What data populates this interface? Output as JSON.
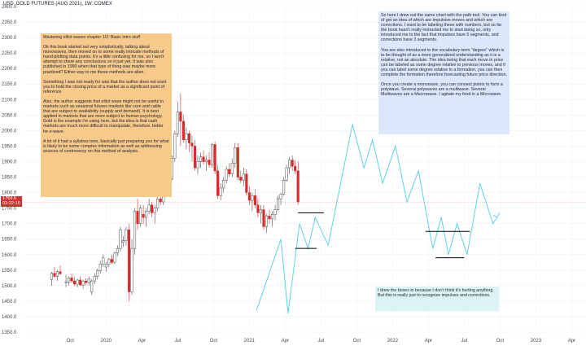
{
  "header": {
    "currency": "USD",
    "title": "GOLD FUTURES (AUG 2021), 1W, COMEX"
  },
  "price_label": {
    "price": "1769.6",
    "countdown": "03:22:15"
  },
  "colors": {
    "up_candle": "#ffffff",
    "down_candle": "#d62b2b",
    "outline": "#4a4a4a",
    "projection": "#61d2e6",
    "support_lines": "#000000",
    "price_line": "#f08a8a"
  },
  "notes": {
    "orange": {
      "title": "Mastering elliot waves chapter 1/2: Basic intro stuff",
      "p1": "Ok this book started out very simplistically, talking about monowaves, then moved on to some really intricate methods of hand-plotting data points. It's a little confusing for me, so I won't attempt to share any conclusions on it just yet. It was also published in 1990 when that type of thing was maybe more practiced? Either way to me those methods are alien.",
      "p2": "Something I was not ready for was that the author does not want you to hold the closing price of a market as a significant point of reference.",
      "p3": "Also, the author suggests that elliot wave might not be useful in markets such as seasonal futures markets like corn and cattle that are subject to availability (supply and demand). It is best applied in markets that are more subject to human psychology. Gold is the example I'm using here, but the idea is that cash markets are much more difficult to manipulate, therefore, better for e-wave.",
      "p4": "A lot of it had a syllabus tone, basically just preparing you for what is likely to be some complex information as well as addressing sources of controversy on this method of analysis."
    },
    "blue": {
      "p1": "So here I drew out the same chart with the path tool. You can kind of get an idea of which are impulsive moves and which are corrections. I want to be labeling these with numbers, but so far the book hasn't really instructed me to start doing so, only introduced me to the fact that impulses have 5 segments, and corrections have 3 segments.",
      "p2": "You are also introduced to the vocabulary term \"degree\" which is to be thought of as a more generalized understanding as it is a relative, not an absolute. The idea being that each move in price can be labeled as some degree relative to previous moves, and if you can label some degree relative to a formation, you can then complete the formation therefore forecasting future price direction.",
      "p3": "Once you create a monowave, you can connect points to form a polywave. Several polywaves are a multiwave. Several Multiwaves are a Macrowave. I agitate my food in a Microwave."
    },
    "cyan": {
      "p1": "I drew the boxes in because I don't think it's hurting anything. But this is really just to recognize impulses and corrections."
    }
  },
  "chart_data": {
    "type": "candlestick",
    "title": "GOLD FUTURES (AUG 2021), 1W, COMEX",
    "ylim": [
      1350,
      2400
    ],
    "y_ticks": [
      2400,
      2350,
      2300,
      2250,
      2200,
      2150,
      2100,
      2050,
      2000,
      1950,
      1900,
      1850,
      1800,
      1750,
      1700,
      1650,
      1600,
      1550,
      1500,
      1450,
      1400,
      1350
    ],
    "y_tick_labels": [
      "2400.0",
      "2350.0",
      "2300.0",
      "2250.0",
      "2200.0",
      "2150.0",
      "2100.0",
      "2050.0",
      "2000.0",
      "1950.0",
      "1900.0",
      "1850.0",
      "1800.0",
      "1750.0",
      "1700.0",
      "1650.0",
      "1600.0",
      "1550.0",
      "1500.0",
      "1450.0",
      "1400.0",
      "1350.0"
    ],
    "x_tick_labels": [
      {
        "t": 2019.75,
        "label": "Oct"
      },
      {
        "t": 2020.0,
        "label": "2020"
      },
      {
        "t": 2020.25,
        "label": "Apr"
      },
      {
        "t": 2020.5,
        "label": "Jul"
      },
      {
        "t": 2020.75,
        "label": "Oct"
      },
      {
        "t": 2021.0,
        "label": "2021"
      },
      {
        "t": 2021.25,
        "label": "Apr"
      },
      {
        "t": 2021.5,
        "label": "Jul"
      },
      {
        "t": 2021.75,
        "label": "Oct"
      },
      {
        "t": 2022.0,
        "label": "2022"
      },
      {
        "t": 2022.25,
        "label": "Apr"
      },
      {
        "t": 2022.5,
        "label": "Jul"
      },
      {
        "t": 2022.75,
        "label": "Oct"
      },
      {
        "t": 2023.0,
        "label": "2023"
      },
      {
        "t": 2023.25,
        "label": "Apr"
      }
    ],
    "candles": [
      {
        "t": 2019.62,
        "o": 1520,
        "h": 1545,
        "l": 1500,
        "c": 1540
      },
      {
        "t": 2019.64,
        "o": 1540,
        "h": 1560,
        "l": 1525,
        "c": 1530
      },
      {
        "t": 2019.66,
        "o": 1530,
        "h": 1550,
        "l": 1515,
        "c": 1545
      },
      {
        "t": 2019.68,
        "o": 1545,
        "h": 1565,
        "l": 1535,
        "c": 1538
      },
      {
        "t": 2019.72,
        "o": 1510,
        "h": 1535,
        "l": 1495,
        "c": 1512
      },
      {
        "t": 2019.74,
        "o": 1512,
        "h": 1530,
        "l": 1500,
        "c": 1525
      },
      {
        "t": 2019.76,
        "o": 1525,
        "h": 1540,
        "l": 1510,
        "c": 1515
      },
      {
        "t": 2019.78,
        "o": 1515,
        "h": 1528,
        "l": 1498,
        "c": 1505
      },
      {
        "t": 2019.8,
        "o": 1505,
        "h": 1522,
        "l": 1495,
        "c": 1518
      },
      {
        "t": 2019.82,
        "o": 1518,
        "h": 1530,
        "l": 1500,
        "c": 1502
      },
      {
        "t": 2019.84,
        "o": 1502,
        "h": 1520,
        "l": 1490,
        "c": 1515
      },
      {
        "t": 2019.86,
        "o": 1515,
        "h": 1525,
        "l": 1500,
        "c": 1510
      },
      {
        "t": 2019.88,
        "o": 1510,
        "h": 1530,
        "l": 1500,
        "c": 1522
      },
      {
        "t": 2019.9,
        "o": 1480,
        "h": 1520,
        "l": 1470,
        "c": 1515
      },
      {
        "t": 2019.92,
        "o": 1515,
        "h": 1540,
        "l": 1505,
        "c": 1530
      },
      {
        "t": 2019.94,
        "o": 1530,
        "h": 1555,
        "l": 1520,
        "c": 1548
      },
      {
        "t": 2019.96,
        "o": 1548,
        "h": 1580,
        "l": 1540,
        "c": 1570
      },
      {
        "t": 2019.98,
        "o": 1570,
        "h": 1600,
        "l": 1560,
        "c": 1590
      },
      {
        "t": 2020.0,
        "o": 1560,
        "h": 1575,
        "l": 1545,
        "c": 1570
      },
      {
        "t": 2020.02,
        "o": 1570,
        "h": 1590,
        "l": 1560,
        "c": 1585
      },
      {
        "t": 2020.04,
        "o": 1585,
        "h": 1600,
        "l": 1570,
        "c": 1575
      },
      {
        "t": 2020.06,
        "o": 1575,
        "h": 1610,
        "l": 1570,
        "c": 1605
      },
      {
        "t": 2020.08,
        "o": 1605,
        "h": 1630,
        "l": 1595,
        "c": 1620
      },
      {
        "t": 2020.1,
        "o": 1620,
        "h": 1690,
        "l": 1610,
        "c": 1680
      },
      {
        "t": 2020.12,
        "o": 1640,
        "h": 1660,
        "l": 1625,
        "c": 1645
      },
      {
        "t": 2020.14,
        "o": 1645,
        "h": 1690,
        "l": 1630,
        "c": 1680
      },
      {
        "t": 2020.16,
        "o": 1680,
        "h": 1700,
        "l": 1450,
        "c": 1480
      },
      {
        "t": 2020.18,
        "o": 1480,
        "h": 1650,
        "l": 1470,
        "c": 1620
      },
      {
        "t": 2020.2,
        "o": 1620,
        "h": 1750,
        "l": 1600,
        "c": 1740
      },
      {
        "t": 2020.22,
        "o": 1740,
        "h": 1780,
        "l": 1680,
        "c": 1700
      },
      {
        "t": 2020.24,
        "o": 1700,
        "h": 1760,
        "l": 1690,
        "c": 1750
      },
      {
        "t": 2020.26,
        "o": 1730,
        "h": 1760,
        "l": 1700,
        "c": 1720
      },
      {
        "t": 2020.28,
        "o": 1720,
        "h": 1750,
        "l": 1690,
        "c": 1740
      },
      {
        "t": 2020.3,
        "o": 1740,
        "h": 1780,
        "l": 1730,
        "c": 1760
      },
      {
        "t": 2020.32,
        "o": 1760,
        "h": 1770,
        "l": 1720,
        "c": 1735
      },
      {
        "t": 2020.34,
        "o": 1735,
        "h": 1760,
        "l": 1700,
        "c": 1750
      },
      {
        "t": 2020.36,
        "o": 1750,
        "h": 1790,
        "l": 1740,
        "c": 1780
      },
      {
        "t": 2020.38,
        "o": 1780,
        "h": 1800,
        "l": 1760,
        "c": 1770
      },
      {
        "t": 2020.4,
        "o": 1770,
        "h": 1810,
        "l": 1760,
        "c": 1800
      },
      {
        "t": 2020.42,
        "o": 1800,
        "h": 1830,
        "l": 1790,
        "c": 1820
      },
      {
        "t": 2020.44,
        "o": 1820,
        "h": 1850,
        "l": 1810,
        "c": 1845
      },
      {
        "t": 2020.46,
        "o": 1845,
        "h": 1920,
        "l": 1840,
        "c": 1910
      },
      {
        "t": 2020.48,
        "o": 1910,
        "h": 2000,
        "l": 1900,
        "c": 1990
      },
      {
        "t": 2020.5,
        "o": 1990,
        "h": 2090,
        "l": 1980,
        "c": 2060
      },
      {
        "t": 2020.52,
        "o": 2060,
        "h": 2120,
        "l": 1950,
        "c": 2030
      },
      {
        "t": 2020.54,
        "o": 2030,
        "h": 2050,
        "l": 1960,
        "c": 1970
      },
      {
        "t": 2020.56,
        "o": 1970,
        "h": 2010,
        "l": 1940,
        "c": 1990
      },
      {
        "t": 2020.58,
        "o": 1990,
        "h": 2000,
        "l": 1930,
        "c": 1960
      },
      {
        "t": 2020.6,
        "o": 1960,
        "h": 1985,
        "l": 1900,
        "c": 1950
      },
      {
        "t": 2020.62,
        "o": 1950,
        "h": 1970,
        "l": 1870,
        "c": 1880
      },
      {
        "t": 2020.64,
        "o": 1880,
        "h": 1920,
        "l": 1860,
        "c": 1900
      },
      {
        "t": 2020.66,
        "o": 1900,
        "h": 1930,
        "l": 1880,
        "c": 1915
      },
      {
        "t": 2020.68,
        "o": 1915,
        "h": 1935,
        "l": 1890,
        "c": 1900
      },
      {
        "t": 2020.7,
        "o": 1900,
        "h": 1920,
        "l": 1870,
        "c": 1905
      },
      {
        "t": 2020.72,
        "o": 1905,
        "h": 1930,
        "l": 1880,
        "c": 1890
      },
      {
        "t": 2020.74,
        "o": 1890,
        "h": 1960,
        "l": 1880,
        "c": 1955
      },
      {
        "t": 2020.76,
        "o": 1955,
        "h": 1965,
        "l": 1860,
        "c": 1870
      },
      {
        "t": 2020.78,
        "o": 1870,
        "h": 1890,
        "l": 1780,
        "c": 1790
      },
      {
        "t": 2020.8,
        "o": 1790,
        "h": 1830,
        "l": 1775,
        "c": 1815
      },
      {
        "t": 2020.82,
        "o": 1815,
        "h": 1850,
        "l": 1800,
        "c": 1840
      },
      {
        "t": 2020.84,
        "o": 1840,
        "h": 1885,
        "l": 1830,
        "c": 1875
      },
      {
        "t": 2020.86,
        "o": 1875,
        "h": 1895,
        "l": 1850,
        "c": 1860
      },
      {
        "t": 2020.88,
        "o": 1860,
        "h": 1910,
        "l": 1850,
        "c": 1895
      },
      {
        "t": 2020.9,
        "o": 1895,
        "h": 1960,
        "l": 1880,
        "c": 1945
      },
      {
        "t": 2020.92,
        "o": 1945,
        "h": 1960,
        "l": 1840,
        "c": 1850
      },
      {
        "t": 2020.94,
        "o": 1850,
        "h": 1870,
        "l": 1830,
        "c": 1840
      },
      {
        "t": 2020.96,
        "o": 1840,
        "h": 1880,
        "l": 1820,
        "c": 1860
      },
      {
        "t": 2020.98,
        "o": 1860,
        "h": 1875,
        "l": 1790,
        "c": 1800
      },
      {
        "t": 2021.0,
        "o": 1800,
        "h": 1820,
        "l": 1760,
        "c": 1775
      },
      {
        "t": 2021.02,
        "o": 1775,
        "h": 1800,
        "l": 1740,
        "c": 1790
      },
      {
        "t": 2021.04,
        "o": 1790,
        "h": 1810,
        "l": 1750,
        "c": 1760
      },
      {
        "t": 2021.06,
        "o": 1760,
        "h": 1780,
        "l": 1720,
        "c": 1735
      },
      {
        "t": 2021.08,
        "o": 1735,
        "h": 1760,
        "l": 1700,
        "c": 1745
      },
      {
        "t": 2021.1,
        "o": 1745,
        "h": 1760,
        "l": 1680,
        "c": 1690
      },
      {
        "t": 2021.12,
        "o": 1690,
        "h": 1730,
        "l": 1670,
        "c": 1725
      },
      {
        "t": 2021.14,
        "o": 1725,
        "h": 1745,
        "l": 1700,
        "c": 1715
      },
      {
        "t": 2021.16,
        "o": 1715,
        "h": 1740,
        "l": 1690,
        "c": 1730
      },
      {
        "t": 2021.18,
        "o": 1730,
        "h": 1760,
        "l": 1710,
        "c": 1745
      },
      {
        "t": 2021.2,
        "o": 1745,
        "h": 1790,
        "l": 1740,
        "c": 1780
      },
      {
        "t": 2021.22,
        "o": 1780,
        "h": 1800,
        "l": 1760,
        "c": 1795
      },
      {
        "t": 2021.24,
        "o": 1795,
        "h": 1850,
        "l": 1790,
        "c": 1840
      },
      {
        "t": 2021.26,
        "o": 1840,
        "h": 1890,
        "l": 1835,
        "c": 1880
      },
      {
        "t": 2021.28,
        "o": 1880,
        "h": 1915,
        "l": 1860,
        "c": 1905
      },
      {
        "t": 2021.3,
        "o": 1905,
        "h": 1920,
        "l": 1870,
        "c": 1885
      },
      {
        "t": 2021.32,
        "o": 1885,
        "h": 1905,
        "l": 1860,
        "c": 1870
      },
      {
        "t": 2021.34,
        "o": 1870,
        "h": 1900,
        "l": 1760,
        "c": 1770
      }
    ],
    "projection_path": [
      {
        "t": 2021.05,
        "v": 1420
      },
      {
        "t": 2021.22,
        "v": 1650
      },
      {
        "t": 2021.27,
        "v": 1410
      },
      {
        "t": 2021.35,
        "v": 1700
      },
      {
        "t": 2021.41,
        "v": 1620
      },
      {
        "t": 2021.46,
        "v": 1720
      },
      {
        "t": 2021.55,
        "v": 1630
      },
      {
        "t": 2021.72,
        "v": 2020
      },
      {
        "t": 2021.8,
        "v": 1880
      },
      {
        "t": 2021.86,
        "v": 1970
      },
      {
        "t": 2021.93,
        "v": 1830
      },
      {
        "t": 2022.02,
        "v": 1950
      },
      {
        "t": 2022.1,
        "v": 1770
      },
      {
        "t": 2022.18,
        "v": 1870
      },
      {
        "t": 2022.28,
        "v": 1620
      },
      {
        "t": 2022.34,
        "v": 1720
      },
      {
        "t": 2022.39,
        "v": 1600
      },
      {
        "t": 2022.45,
        "v": 1700
      },
      {
        "t": 2022.52,
        "v": 1600
      },
      {
        "t": 2022.61,
        "v": 1830
      },
      {
        "t": 2022.7,
        "v": 1700
      },
      {
        "t": 2022.73,
        "v": 1720
      }
    ],
    "support_lines": [
      {
        "t1": 2021.34,
        "t2": 2021.52,
        "v": 1735
      },
      {
        "t1": 2021.32,
        "t2": 2021.47,
        "v": 1620
      },
      {
        "t1": 2022.23,
        "t2": 2022.54,
        "v": 1675
      },
      {
        "t1": 2022.3,
        "t2": 2022.5,
        "v": 1590
      }
    ],
    "last_price": 1769.6
  }
}
